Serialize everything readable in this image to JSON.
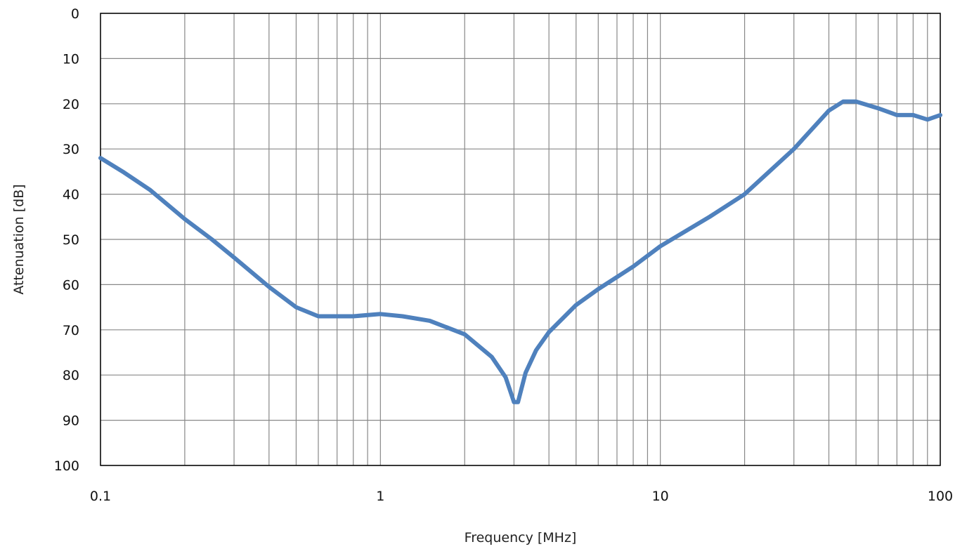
{
  "chart_data": {
    "type": "line",
    "xlabel": "Frequency [MHz]",
    "ylabel": "Attenuation [dB]",
    "x_scale": "log",
    "xlim": [
      0.1,
      100
    ],
    "ylim": [
      0,
      100
    ],
    "y_inverted": true,
    "grid": true,
    "x_ticks": [
      "0.1",
      "1",
      "10",
      "100"
    ],
    "y_ticks": [
      "0",
      "10",
      "20",
      "30",
      "40",
      "50",
      "60",
      "70",
      "80",
      "90",
      "100"
    ],
    "colors": {
      "line": "#4f81bd",
      "grid": "#888888",
      "axis": "#000000"
    },
    "series": [
      {
        "x": [
          0.1,
          0.12,
          0.15,
          0.2,
          0.25,
          0.3,
          0.4,
          0.5,
          0.6,
          0.7,
          0.8,
          1.0,
          1.2,
          1.5,
          2.0,
          2.5,
          2.8,
          3.0,
          3.1,
          3.3,
          3.6,
          4.0,
          5.0,
          6.0,
          8.0,
          10.0,
          15.0,
          20.0,
          30.0,
          40.0,
          45.0,
          50.0,
          60.0,
          70.0,
          80.0,
          90.0,
          100.0
        ],
        "y": [
          32.0,
          35.0,
          39.0,
          45.5,
          50.0,
          54.0,
          60.5,
          65.0,
          67.0,
          67.0,
          67.0,
          66.5,
          67.0,
          68.0,
          71.0,
          76.0,
          80.5,
          86.0,
          86.0,
          79.5,
          74.5,
          70.5,
          64.5,
          61.0,
          56.0,
          51.5,
          45.0,
          40.0,
          30.0,
          21.5,
          19.5,
          19.5,
          21.0,
          22.5,
          22.5,
          23.5,
          22.5
        ]
      }
    ]
  }
}
